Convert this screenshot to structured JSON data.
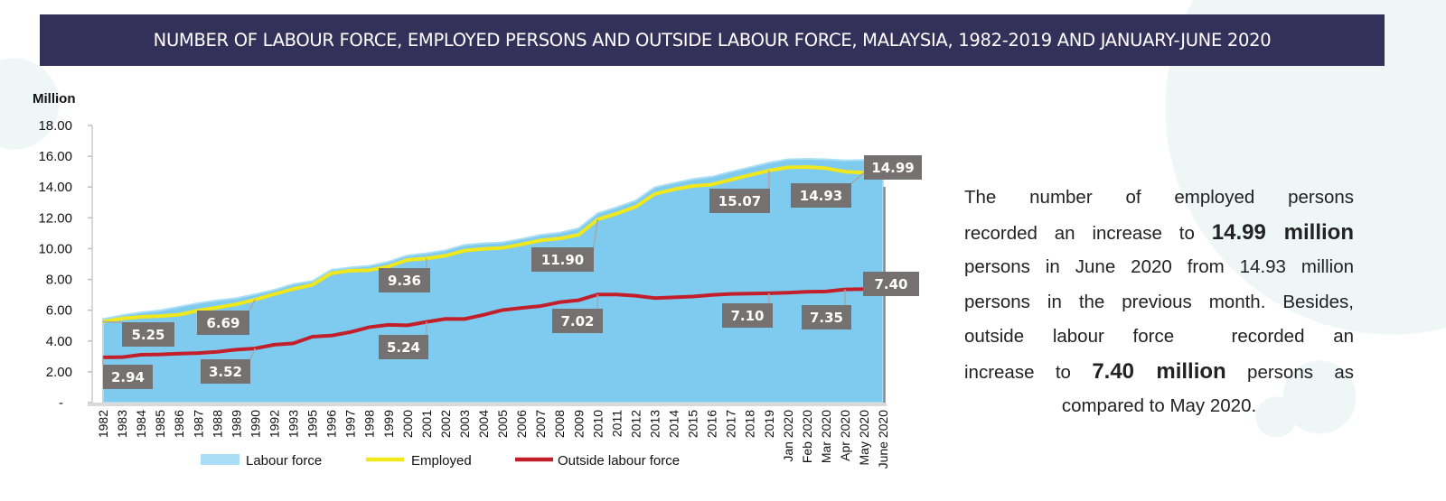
{
  "title": "NUMBER OF LABOUR FORCE, EMPLOYED PERSONS AND OUTSIDE LABOUR FORCE, MALAYSIA, 1982-2019 AND JANUARY-JUNE 2020",
  "summary": {
    "l1": "The number of employed persons",
    "l2a": "recorded an increase to ",
    "l2b": "14.99 million",
    "l3": "persons in June 2020 from 14.93 million",
    "l4": "persons in the previous month. Besides,",
    "l5": "outside labour force  recorded an",
    "l6a": "increase to ",
    "l6b": "7.40 million",
    "l6c": " persons as",
    "l7": "compared to May 2020."
  },
  "colors": {
    "labour_force": "#7ecbef",
    "labour_force_legend": "#a9def6",
    "employed": "#f0e81c",
    "outside": "#c21f2b",
    "label_box": "#767171",
    "title_bg": "#33305a"
  },
  "chart_data": {
    "type": "area",
    "title": "NUMBER OF LABOUR FORCE, EMPLOYED PERSONS AND OUTSIDE LABOUR FORCE, MALAYSIA, 1982-2019 AND JANUARY-JUNE 2020",
    "ylabel": "Million",
    "xlabel": "",
    "ylim": [
      0,
      18
    ],
    "yticks": [
      "-",
      "2.00",
      "4.00",
      "6.00",
      "8.00",
      "10.00",
      "12.00",
      "14.00",
      "16.00",
      "18.00"
    ],
    "legend_position": "bottom",
    "categories": [
      "1982",
      "1983",
      "1984",
      "1985",
      "1986",
      "1987",
      "1988",
      "1989",
      "1990",
      "1992",
      "1993",
      "1995",
      "1996",
      "1997",
      "1998",
      "1999",
      "2000",
      "2001",
      "2002",
      "2003",
      "2004",
      "2005",
      "2006",
      "2007",
      "2008",
      "2009",
      "2010",
      "2011",
      "2012",
      "2013",
      "2014",
      "2015",
      "2016",
      "2017",
      "2018",
      "2019",
      "Jan 2020",
      "Feb 2020",
      "Mar 2020",
      "Apr 2020",
      "May 2020",
      "June 2020"
    ],
    "series": [
      {
        "name": "Labour force",
        "type": "area",
        "values": [
          5.43,
          5.67,
          5.86,
          5.99,
          6.22,
          6.46,
          6.64,
          6.78,
          7.04,
          7.32,
          7.7,
          7.89,
          8.62,
          8.78,
          8.88,
          9.15,
          9.56,
          9.7,
          9.89,
          10.24,
          10.35,
          10.41,
          10.63,
          10.89,
          11.03,
          11.32,
          12.3,
          12.68,
          13.12,
          13.98,
          14.26,
          14.52,
          14.67,
          14.99,
          15.28,
          15.58,
          15.8,
          15.83,
          15.8,
          15.73,
          15.76,
          15.77
        ]
      },
      {
        "name": "Employed",
        "type": "line",
        "values": [
          5.25,
          5.46,
          5.57,
          5.62,
          5.71,
          5.98,
          6.17,
          6.39,
          6.69,
          7.05,
          7.38,
          7.65,
          8.4,
          8.57,
          8.6,
          8.84,
          9.27,
          9.36,
          9.54,
          9.87,
          9.98,
          10.05,
          10.28,
          10.54,
          10.66,
          10.9,
          11.9,
          12.28,
          12.72,
          13.55,
          13.85,
          14.07,
          14.16,
          14.48,
          14.78,
          15.07,
          15.28,
          15.3,
          15.22,
          15.0,
          14.93,
          14.99
        ]
      },
      {
        "name": "Outside labour force",
        "type": "line",
        "values": [
          2.94,
          2.95,
          3.11,
          3.13,
          3.18,
          3.22,
          3.3,
          3.44,
          3.52,
          3.76,
          3.85,
          4.28,
          4.35,
          4.58,
          4.9,
          5.05,
          5.02,
          5.24,
          5.44,
          5.43,
          5.7,
          6.01,
          6.15,
          6.27,
          6.52,
          6.65,
          7.02,
          7.02,
          6.94,
          6.79,
          6.84,
          6.89,
          6.99,
          7.06,
          7.08,
          7.1,
          7.14,
          7.2,
          7.22,
          7.35,
          7.37,
          7.4
        ]
      }
    ],
    "data_labels": [
      {
        "series": "Employed",
        "category": "1982",
        "text": "5.25"
      },
      {
        "series": "Employed",
        "category": "1990",
        "text": "6.69"
      },
      {
        "series": "Employed",
        "category": "2001",
        "text": "9.36"
      },
      {
        "series": "Employed",
        "category": "2010",
        "text": "11.90"
      },
      {
        "series": "Employed",
        "category": "2019",
        "text": "15.07"
      },
      {
        "series": "Employed",
        "category": "May 2020",
        "text": "14.93"
      },
      {
        "series": "Employed",
        "category": "June 2020",
        "text": "14.99"
      },
      {
        "series": "Outside labour force",
        "category": "1982",
        "text": "2.94"
      },
      {
        "series": "Outside labour force",
        "category": "1990",
        "text": "3.52"
      },
      {
        "series": "Outside labour force",
        "category": "2001",
        "text": "5.24"
      },
      {
        "series": "Outside labour force",
        "category": "2010",
        "text": "7.02"
      },
      {
        "series": "Outside labour force",
        "category": "2019",
        "text": "7.10"
      },
      {
        "series": "Outside labour force",
        "category": "Apr 2020",
        "text": "7.35"
      },
      {
        "series": "Outside labour force",
        "category": "June 2020",
        "text": "7.40"
      }
    ]
  }
}
